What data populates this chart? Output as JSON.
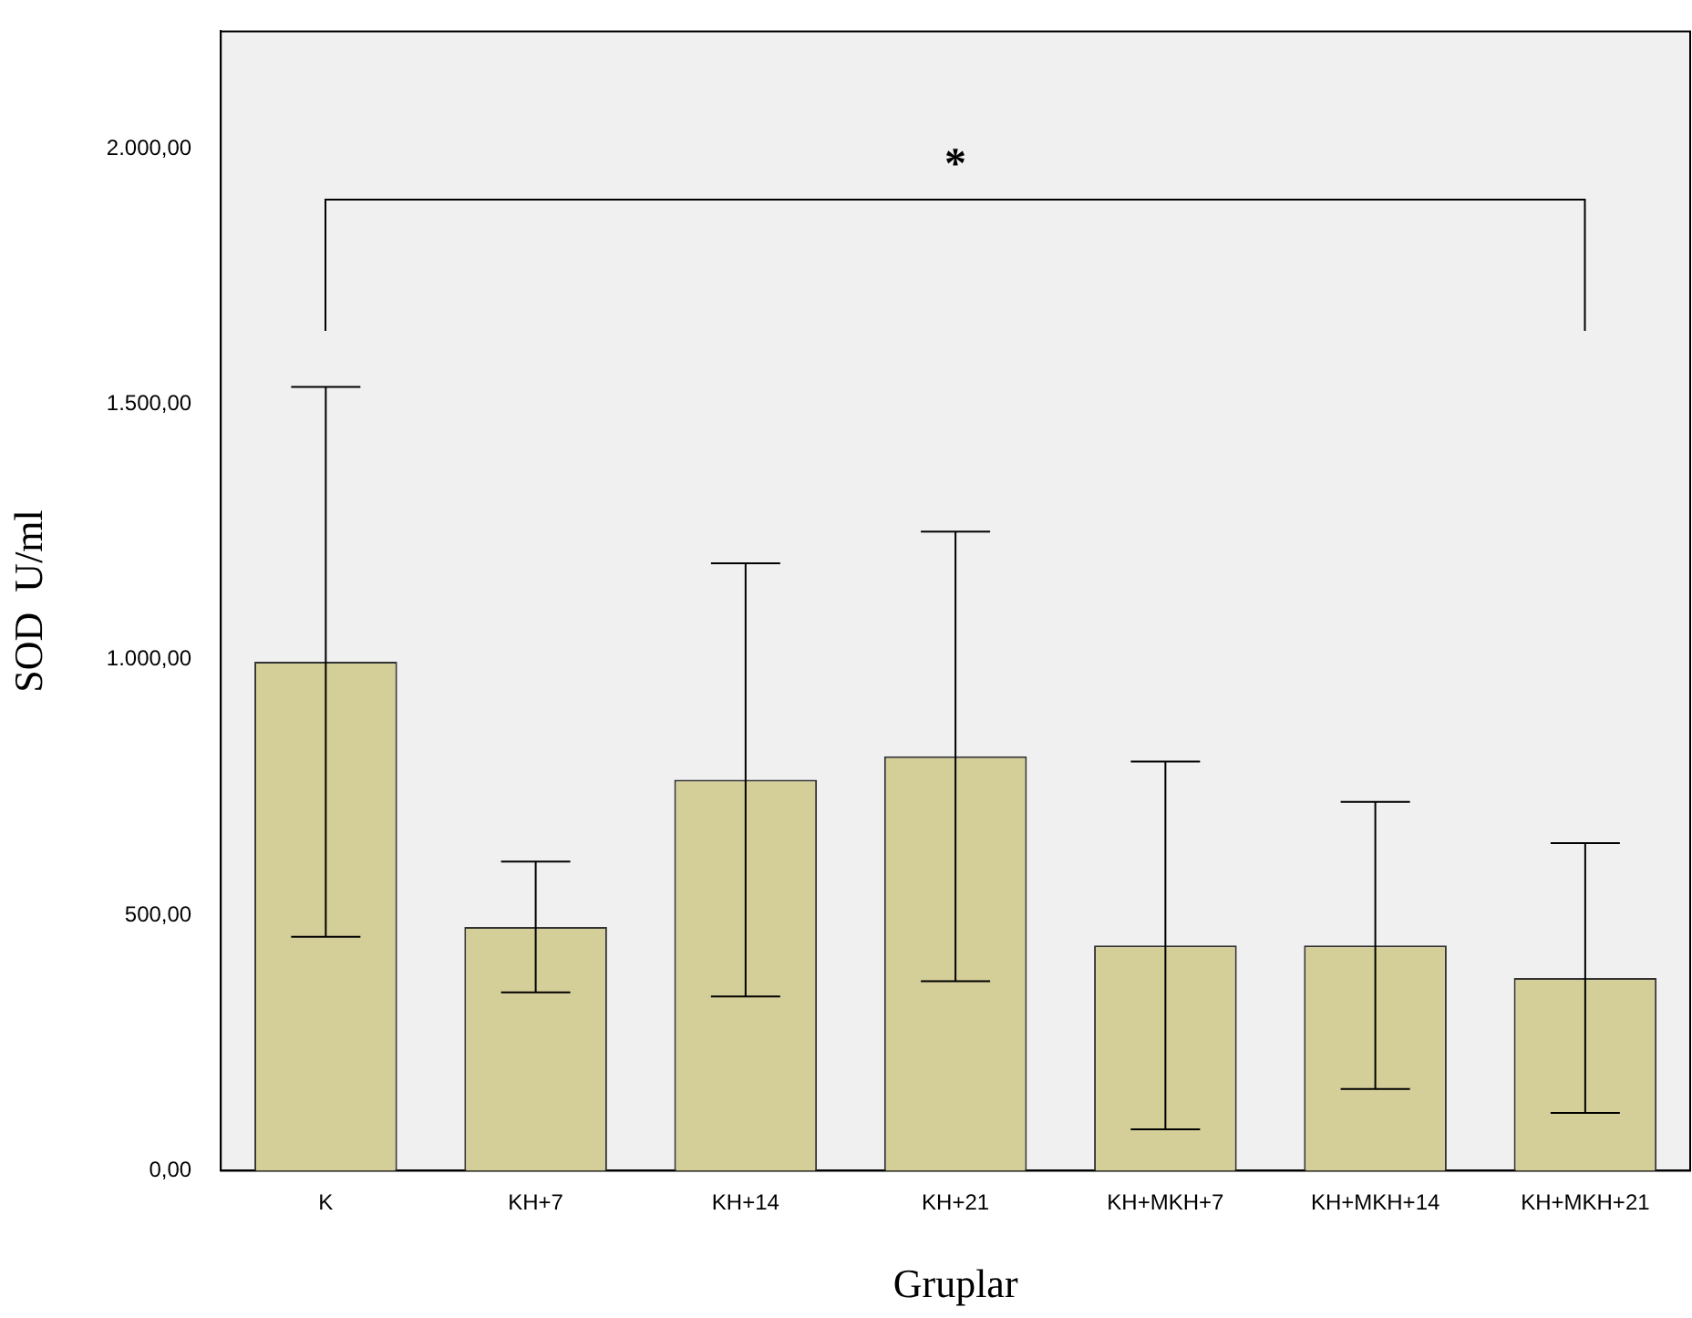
{
  "chart_data": {
    "type": "bar",
    "xlabel": "Gruplar",
    "ylabel": "SOD  U/ml",
    "categories": [
      "K",
      "KH+7",
      "KH+14",
      "KH+21",
      "KH+MKH+7",
      "KH+MKH+14",
      "KH+MKH+21"
    ],
    "values": [
      996,
      477,
      765,
      811,
      441,
      441,
      377
    ],
    "errors": [
      538,
      128,
      424,
      440,
      360,
      281,
      264
    ],
    "color": "#d4cf98",
    "ylim": [
      0,
      2230
    ],
    "yticks": [
      {
        "value": 0,
        "label": "0,00"
      },
      {
        "value": 500,
        "label": "500,00"
      },
      {
        "value": 1000,
        "label": "1.000,00"
      },
      {
        "value": 1500,
        "label": "1.500,00"
      },
      {
        "value": 2000,
        "label": "2.000,00"
      }
    ],
    "annotations": [
      "*"
    ],
    "grid": false,
    "legend": false
  }
}
